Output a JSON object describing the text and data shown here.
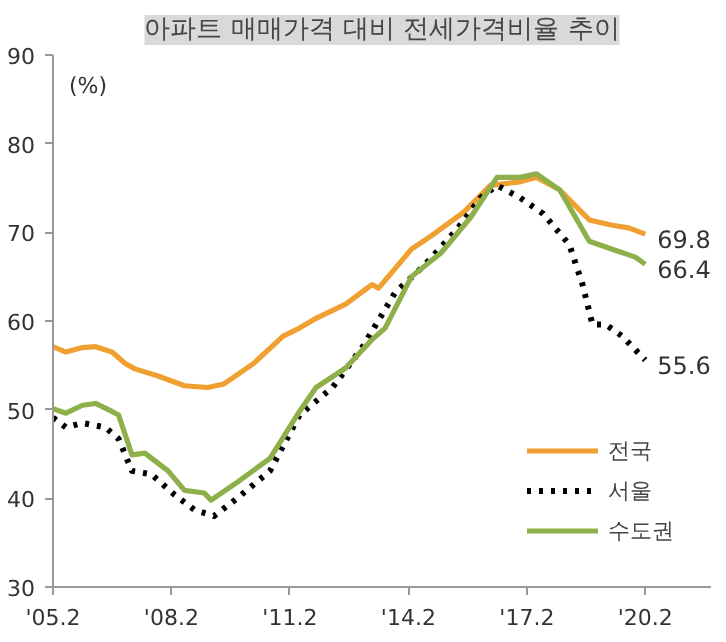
{
  "chart_data": {
    "type": "line",
    "title": "아파트 매매가격 대비 전세가격비율 추이",
    "ylabel": "(%)",
    "xlim": [
      "2005-02",
      "2021-10"
    ],
    "ylim": [
      30,
      90
    ],
    "xticks": [
      {
        "value": "2005-02",
        "label": "'05.2"
      },
      {
        "value": "2008-02",
        "label": "'08.2"
      },
      {
        "value": "2011-02",
        "label": "'11.2"
      },
      {
        "value": "2014-02",
        "label": "'14.2"
      },
      {
        "value": "2017-02",
        "label": "'17.2"
      },
      {
        "value": "2020-02",
        "label": "'20.2"
      }
    ],
    "yticks": [
      30,
      40,
      50,
      60,
      70,
      80,
      90
    ],
    "grid": false,
    "legend": "bottom right",
    "marker": "none",
    "series": [
      {
        "name": "전국",
        "color": "#f0a030",
        "line_style": "solid",
        "x": [
          "2005-02",
          "2005-06",
          "2005-11",
          "2006-03",
          "2006-08",
          "2006-12",
          "2007-03",
          "2007-10",
          "2008-06",
          "2009-01",
          "2009-06",
          "2010-03",
          "2010-12",
          "2011-05",
          "2011-10",
          "2012-07",
          "2013-03",
          "2013-05",
          "2014-03",
          "2014-09",
          "2015-07",
          "2016-03",
          "2016-12",
          "2017-05",
          "2017-12",
          "2018-09",
          "2019-04",
          "2019-09",
          "2020-02"
        ],
        "values": [
          57.1,
          56.5,
          57.0,
          57.1,
          56.5,
          55.2,
          54.6,
          53.8,
          52.7,
          52.5,
          52.9,
          55.2,
          58.3,
          59.2,
          60.3,
          61.9,
          64.1,
          63.7,
          68.1,
          69.6,
          72.3,
          75.3,
          75.7,
          76.2,
          74.8,
          71.4,
          70.8,
          70.5,
          69.8
        ],
        "value_labels": [
          null,
          null,
          null,
          null,
          null,
          null,
          null,
          null,
          null,
          null,
          null,
          null,
          null,
          null,
          null,
          null,
          null,
          null,
          null,
          null,
          null,
          null,
          null,
          null,
          null,
          null,
          null,
          null,
          "69.8"
        ]
      },
      {
        "name": "서울",
        "color": "#000000",
        "line_style": "dotted",
        "x": [
          "2005-02",
          "2005-06",
          "2005-11",
          "2006-06",
          "2006-10",
          "2007-02",
          "2007-08",
          "2008-03",
          "2008-09",
          "2009-03",
          "2009-10",
          "2010-08",
          "2011-05",
          "2012-03",
          "2012-12",
          "2013-10",
          "2014-07",
          "2015-05",
          "2015-12",
          "2016-05",
          "2016-12",
          "2017-07",
          "2018-03",
          "2018-07",
          "2018-10",
          "2019-02",
          "2019-07",
          "2020-02"
        ],
        "values": [
          49.1,
          48.0,
          48.5,
          48.0,
          46.7,
          43.1,
          42.7,
          40.4,
          38.7,
          38.0,
          40.0,
          43.1,
          49.4,
          52.5,
          57.0,
          63.2,
          66.3,
          70.4,
          73.9,
          75.3,
          73.9,
          72.1,
          68.6,
          64.1,
          59.6,
          59.6,
          58.3,
          55.6
        ],
        "value_labels": [
          null,
          null,
          null,
          null,
          null,
          null,
          null,
          null,
          null,
          null,
          null,
          null,
          null,
          null,
          null,
          null,
          null,
          null,
          null,
          null,
          null,
          null,
          null,
          null,
          null,
          null,
          null,
          "55.6"
        ]
      },
      {
        "name": "수도권",
        "color": "#8db04a",
        "line_style": "solid",
        "x": [
          "2005-02",
          "2005-06",
          "2005-11",
          "2006-03",
          "2006-08",
          "2006-10",
          "2007-02",
          "2007-06",
          "2008-01",
          "2008-06",
          "2008-12",
          "2009-02",
          "2009-10",
          "2010-08",
          "2011-05",
          "2011-10",
          "2012-07",
          "2013-03",
          "2013-07",
          "2014-03",
          "2014-12",
          "2015-09",
          "2016-05",
          "2016-12",
          "2017-05",
          "2017-12",
          "2018-09",
          "2019-04",
          "2019-11",
          "2020-02"
        ],
        "values": [
          50.1,
          49.6,
          50.5,
          50.7,
          49.8,
          49.4,
          44.9,
          45.1,
          43.1,
          40.9,
          40.6,
          39.8,
          41.8,
          44.5,
          49.8,
          52.5,
          54.7,
          57.9,
          59.2,
          65.0,
          67.7,
          71.7,
          76.2,
          76.2,
          76.6,
          74.8,
          69.0,
          68.1,
          67.2,
          66.4
        ],
        "value_labels": [
          null,
          null,
          null,
          null,
          null,
          null,
          null,
          null,
          null,
          null,
          null,
          null,
          null,
          null,
          null,
          null,
          null,
          null,
          null,
          null,
          null,
          null,
          null,
          null,
          null,
          null,
          null,
          null,
          null,
          "66.4"
        ]
      }
    ]
  }
}
